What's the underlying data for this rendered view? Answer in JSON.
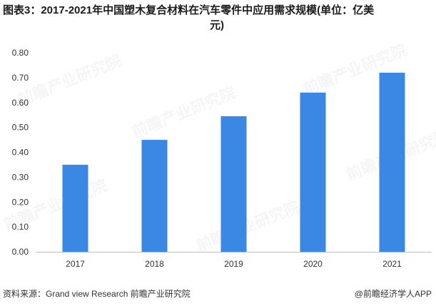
{
  "title_line1": "图表3：2017-2021年中国塑木复合材料在汽车零件中应用需求规模(单位：亿美",
  "title_line2": "元)",
  "footer": {
    "source": "资料来源：Grand view Research 前瞻产业研究院",
    "brand": "@前瞻经济学人APP"
  },
  "watermark_text": "前瞻产业研究院",
  "colors": {
    "bar": "#3b87e4",
    "axis": "#bfbfbf"
  },
  "chart_data": {
    "type": "bar",
    "title": "图表3：2017-2021年中国塑木复合材料在汽车零件中应用需求规模(单位：亿美元)",
    "categories": [
      "2017",
      "2018",
      "2019",
      "2020",
      "2021"
    ],
    "values": [
      0.35,
      0.45,
      0.545,
      0.64,
      0.72
    ],
    "yticks": [
      "0.00",
      "0.10",
      "0.20",
      "0.30",
      "0.40",
      "0.50",
      "0.60",
      "0.70",
      "0.80"
    ],
    "ylim": [
      0,
      0.8
    ],
    "xlabel": "",
    "ylabel": "",
    "grid": false,
    "legend": "none"
  }
}
